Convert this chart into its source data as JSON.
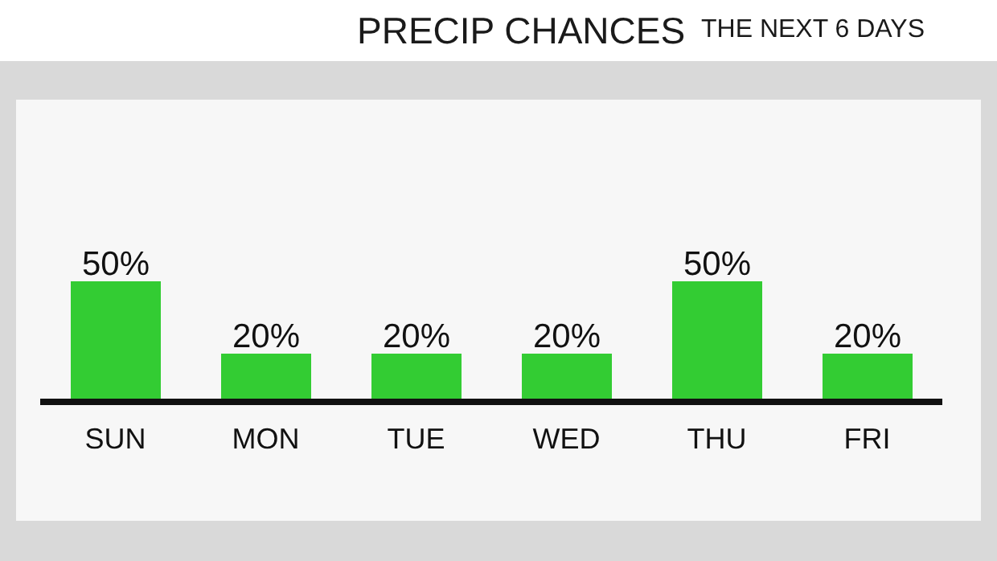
{
  "chart_data": {
    "type": "bar",
    "title": "PRECIP CHANCES",
    "subtitle": "THE NEXT 6 DAYS",
    "categories": [
      "SUN",
      "MON",
      "TUE",
      "WED",
      "THU",
      "FRI"
    ],
    "values": [
      50,
      20,
      20,
      20,
      50,
      20
    ],
    "value_labels": [
      "50%",
      "20%",
      "20%",
      "20%",
      "50%",
      "20%"
    ],
    "color": "#33cc33",
    "grid": false,
    "legend": false
  }
}
